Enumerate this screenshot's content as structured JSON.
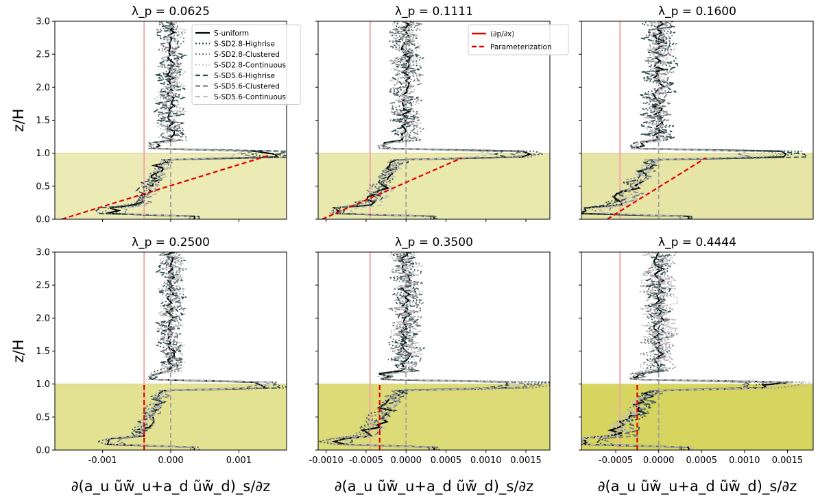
{
  "figure": {
    "ylabel": "z/H",
    "xlabel": "∂(a_u ũw̃_u+a_d ũw̃_d)_s/∂z",
    "legend_series_left": [
      {
        "label": "S-uniform",
        "color": "#000000",
        "dash": "solid"
      },
      {
        "label": "S-SD2.8-Highrise",
        "color": "#2f4f4f",
        "dash": "dot"
      },
      {
        "label": "S-SD2.8-Clustered",
        "color": "#808080",
        "dash": "dot"
      },
      {
        "label": "S-SD2.8-Continuous",
        "color": "#c0c0c0",
        "dash": "dot"
      },
      {
        "label": "S-SD5.6-Highrise",
        "color": "#2f4f4f",
        "dash": "dash"
      },
      {
        "label": "S-SD5.6-Clustered",
        "color": "#808080",
        "dash": "dash"
      },
      {
        "label": "S-SD5.6-Continuous",
        "color": "#c0c0c0",
        "dash": "dash"
      }
    ],
    "legend_ref": [
      {
        "label": "⟨∂p/∂x⟩",
        "color": "#e00000",
        "dash": "solid"
      },
      {
        "label": "Parameterization",
        "color": "#e00000",
        "dash": "dash"
      }
    ]
  },
  "chart_data": [
    {
      "type": "line",
      "title": "λ_p = 0.0625",
      "xlim": [
        -0.0017,
        0.0017
      ],
      "ylim": [
        0,
        3
      ],
      "xticks": [
        "-0.001",
        "0.000",
        "0.001"
      ],
      "xtick_values": [
        -0.001,
        0.0,
        0.001
      ],
      "canopy_top": 1.0,
      "canopy_shade": "#ecebb5",
      "pressure_gradient": -0.00039,
      "parameterization": {
        "x": [
          -0.0016,
          0.00145
        ],
        "y": [
          0.0,
          0.97
        ]
      }
    },
    {
      "type": "line",
      "title": "λ_p = 0.1111",
      "xlim": [
        -0.0011,
        0.0018
      ],
      "ylim": [
        0,
        3
      ],
      "xticks": [
        "-0.0010",
        "-0.0005",
        "0.0000",
        "0.0005",
        "0.0010",
        "0.0015"
      ],
      "xtick_values": [
        -0.001,
        -0.0005,
        0.0,
        0.0005,
        0.001,
        0.0015
      ],
      "canopy_top": 1.0,
      "canopy_shade": "#e9e8ad",
      "pressure_gradient": -0.00045,
      "parameterization": {
        "x": [
          -0.00105,
          0.0007
        ],
        "y": [
          0.0,
          0.93
        ]
      }
    },
    {
      "type": "line",
      "title": "λ_p = 0.1600",
      "xlim": [
        -0.0009,
        0.0018
      ],
      "ylim": [
        0,
        3
      ],
      "xticks": [],
      "xtick_values": [],
      "canopy_top": 1.0,
      "canopy_shade": "#e6e5a5",
      "pressure_gradient": -0.00045,
      "parameterization": {
        "x": [
          -0.0006,
          0.00055
        ],
        "y": [
          0.0,
          0.93
        ]
      }
    },
    {
      "type": "line",
      "title": "λ_p = 0.2500",
      "xlim": [
        -0.0017,
        0.0017
      ],
      "ylim": [
        0,
        3
      ],
      "xticks": [
        "-0.001",
        "0.000",
        "0.001"
      ],
      "xtick_values": [
        -0.001,
        0.0,
        0.001
      ],
      "canopy_top": 1.0,
      "canopy_shade": "#e3e293",
      "pressure_gradient": -0.00039,
      "parameterization": {
        "x": [
          -0.00039,
          -0.00039
        ],
        "y": [
          0.0,
          1.0
        ]
      }
    },
    {
      "type": "line",
      "title": "λ_p = 0.3500",
      "xlim": [
        -0.0011,
        0.0018
      ],
      "ylim": [
        0,
        3
      ],
      "xticks": [
        "-0.0010",
        "-0.0005",
        "0.0000",
        "0.0005",
        "0.0010",
        "0.0015"
      ],
      "xtick_values": [
        -0.001,
        -0.0005,
        0.0,
        0.0005,
        0.001,
        0.0015
      ],
      "canopy_top": 1.0,
      "canopy_shade": "#dcdb78",
      "pressure_gradient": -0.00045,
      "parameterization": {
        "x": [
          -0.00033,
          -0.00033
        ],
        "y": [
          0.0,
          1.0
        ]
      }
    },
    {
      "type": "line",
      "title": "λ_p = 0.4444",
      "xlim": [
        -0.0009,
        0.0018
      ],
      "ylim": [
        0,
        3
      ],
      "xticks": [
        "-0.0005",
        "0.0000",
        "0.0005",
        "0.0010",
        "0.0015"
      ],
      "xtick_values": [
        -0.0005,
        0.0,
        0.0005,
        0.001,
        0.0015
      ],
      "canopy_top": 1.0,
      "canopy_shade": "#d6d55f",
      "pressure_gradient": -0.00045,
      "parameterization": {
        "x": [
          -0.00025,
          -0.00025
        ],
        "y": [
          0.0,
          1.0
        ]
      }
    }
  ]
}
